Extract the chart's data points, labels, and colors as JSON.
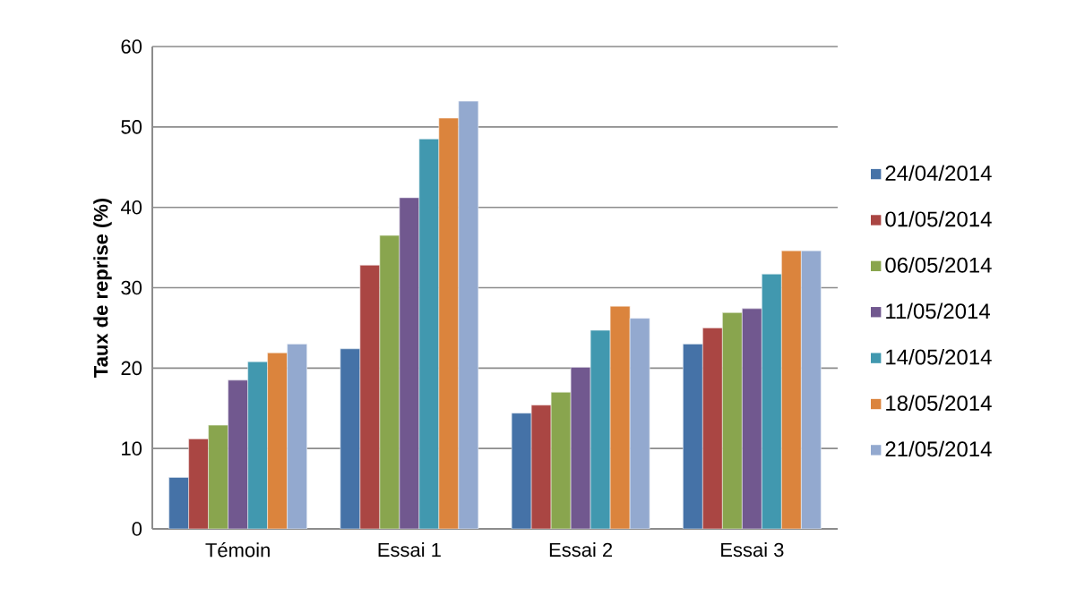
{
  "chart_data": {
    "type": "bar",
    "ylabel": "Taux de reprise (%)",
    "categories": [
      "Témoin",
      "Essai 1",
      "Essai 2",
      "Essai 3"
    ],
    "series": [
      {
        "name": "24/04/2014",
        "color": "#4572a7",
        "values": [
          6.4,
          22.4,
          14.4,
          23.0
        ]
      },
      {
        "name": "01/05/2014",
        "color": "#aa4643",
        "values": [
          11.2,
          32.8,
          15.4,
          25.0
        ]
      },
      {
        "name": "06/05/2014",
        "color": "#89a54e",
        "values": [
          12.9,
          36.5,
          17.0,
          26.9
        ]
      },
      {
        "name": "11/05/2014",
        "color": "#71588f",
        "values": [
          18.5,
          41.2,
          20.1,
          27.4
        ]
      },
      {
        "name": "14/05/2014",
        "color": "#4198af",
        "values": [
          20.8,
          48.5,
          24.7,
          31.7
        ]
      },
      {
        "name": "18/05/2014",
        "color": "#db843d",
        "values": [
          21.9,
          51.1,
          27.7,
          34.6
        ]
      },
      {
        "name": "21/05/2014",
        "color": "#93a9cf",
        "values": [
          23.0,
          53.2,
          26.2,
          34.6
        ]
      }
    ],
    "ylim": [
      0,
      60
    ],
    "yticks": [
      0,
      10,
      20,
      30,
      40,
      50,
      60
    ],
    "grid": "y",
    "legend": "right"
  }
}
